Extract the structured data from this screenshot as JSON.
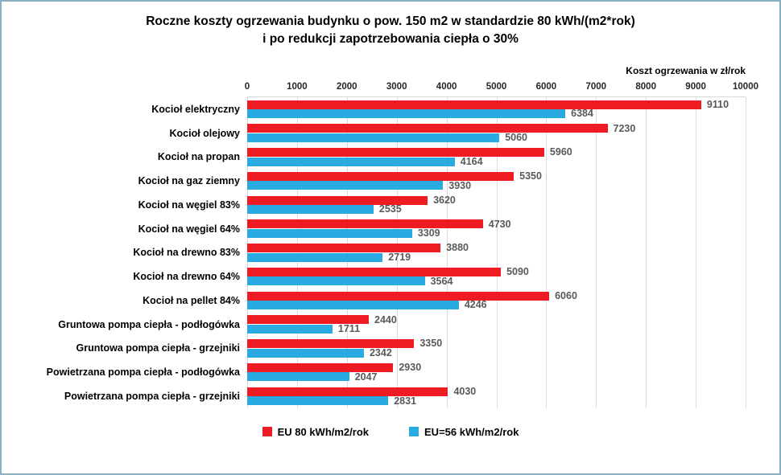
{
  "frame": {
    "border_color": "#87b0c4",
    "background": "#ffffff"
  },
  "title": {
    "line1": "Roczne koszty ogrzewania budynku o pow. 150 m2 w standardzie 80 kWh/(m2*rok)",
    "line2": "i po redukcji zapotrzebowania ciepła o 30%"
  },
  "chart_data": {
    "type": "bar",
    "orientation": "horizontal",
    "title": "Roczne koszty ogrzewania budynku o pow. 150 m2 w standardzie 80 kWh/(m2*rok) i po redukcji zapotrzebowania ciepła o 30%",
    "axis_label": "Koszt ogrzewania w zł/rok",
    "xlim": [
      0,
      10000
    ],
    "x_ticks": [
      "0",
      "1000",
      "2000",
      "3000",
      "4000",
      "5000",
      "6000",
      "7000",
      "8000",
      "9000",
      "10000"
    ],
    "grid": true,
    "legend_position": "bottom",
    "value_label_color": "#595959",
    "gridline_color": "#dcdcdc",
    "categories": [
      "Kocioł elektryczny",
      "Kocioł olejowy",
      "Kocioł na propan",
      "Kocioł na gaz ziemny",
      "Kocioł na węgiel 83%",
      "Kocioł na węgiel 64%",
      "Kocioł na drewno 83%",
      "Kocioł na drewno  64%",
      "Kocioł na pellet 84%",
      "Gruntowa pompa ciepła - podłogówka",
      "Gruntowa pompa ciepła - grzejniki",
      "Powietrzana pompa ciepła - podłogówka",
      "Powietrzana pompa ciepła - grzejniki"
    ],
    "series": [
      {
        "name": "EU 80 kWh/m2/rok",
        "color": "#ee1b23",
        "values": [
          9110,
          7230,
          5960,
          5350,
          3620,
          4730,
          3880,
          5090,
          6060,
          2440,
          3350,
          2930,
          4030
        ]
      },
      {
        "name": "EU=56 kWh/m2/rok",
        "color": "#29abe2",
        "values": [
          6384,
          5060,
          4164,
          3930,
          2535,
          3309,
          2719,
          3564,
          4246,
          1711,
          2342,
          2047,
          2831
        ]
      }
    ]
  }
}
